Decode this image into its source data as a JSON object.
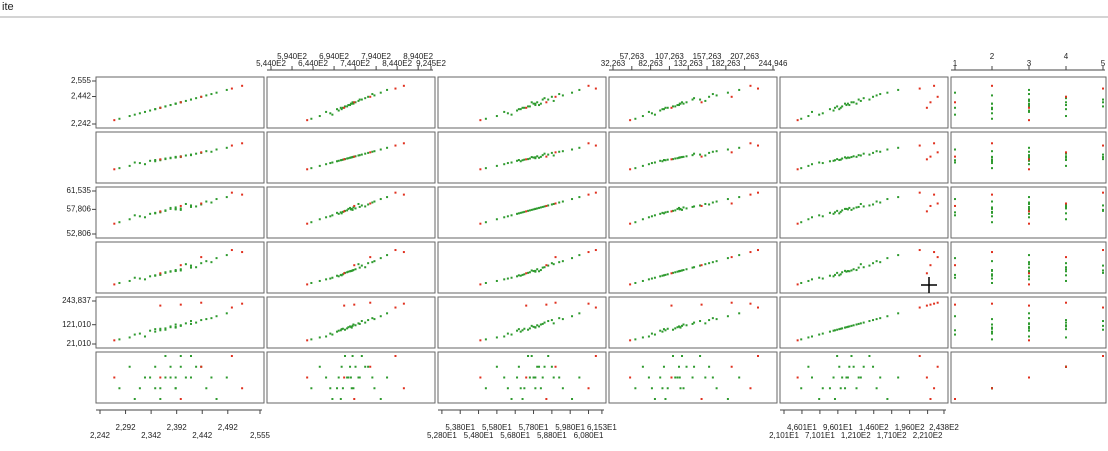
{
  "chart_data": {
    "type": "scatter-matrix",
    "title": "ite",
    "variables": [
      {
        "lim": [
          2.242,
          2.555
        ],
        "ticks": [
          {
            "value": 2.242,
            "label": "2,242"
          },
          {
            "value": 2.292,
            "label": "2,292"
          },
          {
            "value": 2.342,
            "label": "2,342"
          },
          {
            "value": 2.392,
            "label": "2,392"
          },
          {
            "value": 2.442,
            "label": "2,442"
          },
          {
            "value": 2.492,
            "label": "2,492"
          },
          {
            "value": 2.555,
            "label": "2,555"
          }
        ],
        "left_ticks": [
          {
            "value": 2.242,
            "label": "2,242"
          },
          {
            "value": 2.442,
            "label": "2,442"
          },
          {
            "value": 2.555,
            "label": "2,555"
          }
        ]
      },
      {
        "lim": [
          544.0,
          924.5
        ],
        "ticks": [
          {
            "value": 544.0,
            "label": "5,440E2"
          },
          {
            "value": 594.0,
            "label": "5,940E2"
          },
          {
            "value": 644.0,
            "label": "6,440E2"
          },
          {
            "value": 694.0,
            "label": "6,940E2"
          },
          {
            "value": 744.0,
            "label": "7,440E2"
          },
          {
            "value": 794.0,
            "label": "7,940E2"
          },
          {
            "value": 844.0,
            "label": "8,440E2"
          },
          {
            "value": 894.0,
            "label": "8,940E2"
          },
          {
            "value": 924.5,
            "label": "9,245E2"
          }
        ]
      },
      {
        "lim": [
          52.806,
          61.535
        ],
        "ticks": [
          {
            "value": 52.8,
            "label": "5,280E1"
          },
          {
            "value": 53.8,
            "label": "5,380E1"
          },
          {
            "value": 54.8,
            "label": "5,480E1"
          },
          {
            "value": 55.8,
            "label": "5,580E1"
          },
          {
            "value": 56.8,
            "label": "5,680E1"
          },
          {
            "value": 57.8,
            "label": "5,780E1"
          },
          {
            "value": 58.8,
            "label": "5,880E1"
          },
          {
            "value": 59.8,
            "label": "5,980E1"
          },
          {
            "value": 60.8,
            "label": "6,080E1"
          },
          {
            "value": 61.53,
            "label": "6,153E1"
          }
        ],
        "left_ticks": [
          {
            "value": 52.806,
            "label": "52,806"
          },
          {
            "value": 57.806,
            "label": "57,806"
          },
          {
            "value": 61.535,
            "label": "61,535"
          }
        ]
      },
      {
        "lim": [
          32.263,
          244.946
        ],
        "ticks": [
          {
            "value": 32.263,
            "label": "32,263"
          },
          {
            "value": 57.263,
            "label": "57,263"
          },
          {
            "value": 82.263,
            "label": "82,263"
          },
          {
            "value": 107.263,
            "label": "107,263"
          },
          {
            "value": 132.263,
            "label": "132,263"
          },
          {
            "value": 157.263,
            "label": "157,263"
          },
          {
            "value": 182.263,
            "label": "182,263"
          },
          {
            "value": 207.263,
            "label": "207,263"
          },
          {
            "value": 244.946,
            "label": "244,946"
          }
        ]
      },
      {
        "lim": [
          21.01,
          243.837
        ],
        "ticks": [
          {
            "value": 21.01,
            "label": "2,101E1"
          },
          {
            "value": 46.01,
            "label": "4,601E1"
          },
          {
            "value": 71.01,
            "label": "7,101E1"
          },
          {
            "value": 96.01,
            "label": "9,601E1"
          },
          {
            "value": 121.0,
            "label": "1,210E2"
          },
          {
            "value": 146.0,
            "label": "1,460E2"
          },
          {
            "value": 171.0,
            "label": "1,710E2"
          },
          {
            "value": 196.0,
            "label": "1,960E2"
          },
          {
            "value": 221.0,
            "label": "2,210E2"
          },
          {
            "value": 243.8,
            "label": "2,438E2"
          }
        ],
        "left_ticks": [
          {
            "value": 21.01,
            "label": "21,010"
          },
          {
            "value": 121.01,
            "label": "121,010"
          },
          {
            "value": 243.837,
            "label": "243,837"
          }
        ]
      },
      {
        "lim": [
          1,
          5
        ],
        "ticks": [
          1,
          2,
          3,
          4,
          5
        ]
      }
    ],
    "series": [
      {
        "color": "#2e9a2e",
        "values": [
          [
            2.39,
            734,
            57.8,
            121,
            110,
            3
          ],
          [
            2.35,
            701,
            57.1,
            98,
            85,
            2
          ],
          [
            2.43,
            768,
            58.4,
            140,
            132,
            4
          ],
          [
            2.31,
            690,
            56.6,
            88,
            70,
            1
          ],
          [
            2.41,
            752,
            58.9,
            155,
            128,
            3
          ],
          [
            2.37,
            720,
            57.5,
            112,
            95,
            5
          ],
          [
            2.45,
            790,
            59.4,
            170,
            150,
            2
          ],
          [
            2.33,
            675,
            56.2,
            80,
            60,
            3
          ],
          [
            2.4,
            745,
            58.0,
            130,
            118,
            4
          ],
          [
            2.36,
            715,
            57.3,
            105,
            100,
            2
          ],
          [
            2.42,
            760,
            58.6,
            148,
            140,
            5
          ],
          [
            2.38,
            728,
            57.9,
            118,
            108,
            3
          ],
          [
            2.3,
            660,
            55.8,
            72,
            55,
            4
          ],
          [
            2.47,
            805,
            59.9,
            185,
            165,
            1
          ],
          [
            2.39,
            740,
            58.2,
            126,
            122,
            2
          ],
          [
            2.34,
            705,
            56.9,
            95,
            90,
            3
          ],
          [
            2.44,
            775,
            58.8,
            160,
            145,
            4
          ],
          [
            2.37,
            725,
            57.6,
            115,
            102,
            3
          ],
          [
            2.28,
            640,
            55.2,
            62,
            45,
            2
          ],
          [
            2.49,
            820,
            60.3,
            200,
            180,
            3
          ],
          [
            2.4,
            738,
            57.7,
            124,
            115,
            5
          ],
          [
            2.36,
            710,
            57.2,
            102,
            92,
            1
          ],
          [
            2.42,
            755,
            58.3,
            138,
            125,
            3
          ],
          [
            2.38,
            732,
            58.1,
            120,
            112,
            4
          ],
          [
            2.32,
            685,
            56.4,
            84,
            75,
            2
          ],
          [
            2.46,
            785,
            59.2,
            165,
            155,
            3
          ],
          [
            2.39,
            736,
            57.9,
            122,
            106,
            2
          ],
          [
            2.35,
            712,
            57.0,
            100,
            98,
            4
          ]
        ]
      },
      {
        "color": "#e0301e",
        "values": [
          [
            2.52,
            860,
            60.8,
            215,
            230,
            2
          ],
          [
            2.27,
            630,
            54.9,
            55,
            40,
            3
          ],
          [
            2.44,
            780,
            59.0,
            190,
            235,
            4
          ],
          [
            2.4,
            742,
            58.5,
            150,
            225,
            1
          ],
          [
            2.5,
            840,
            61.2,
            225,
            210,
            5
          ],
          [
            2.36,
            718,
            57.4,
            110,
            220,
            3
          ]
        ]
      }
    ]
  }
}
